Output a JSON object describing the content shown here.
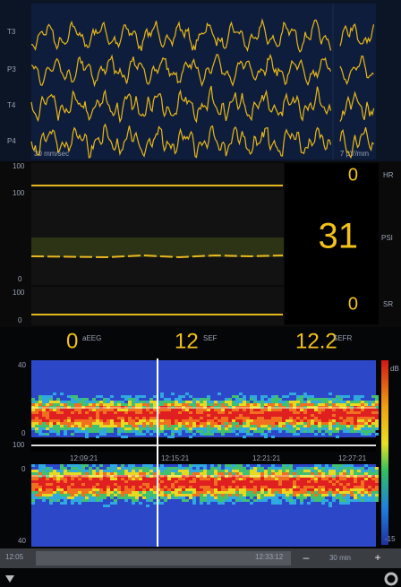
{
  "eeg": {
    "channels": [
      "T3",
      "P3",
      "T4",
      "P4"
    ],
    "speed": "30 mm/sec",
    "gain": "7 µV/mm"
  },
  "trends": {
    "rows": [
      {
        "value": "0",
        "unit": "HR",
        "top": "100",
        "bottom": "0"
      },
      {
        "value": "31",
        "unit": "PSI",
        "top": "100",
        "bottom": "0"
      },
      {
        "value": "0",
        "unit": "SR",
        "top": "100",
        "bottom": "0"
      }
    ]
  },
  "readouts": [
    {
      "value": "0",
      "label": "aEEG"
    },
    {
      "value": "12",
      "label": "SEF"
    },
    {
      "value": "12.2",
      "label": "SEFR"
    }
  ],
  "spectrogram": {
    "top_max": "40",
    "top_min": "0",
    "bottom_max": "0",
    "bottom_min": "40",
    "strip": "100",
    "scale_top": "dB",
    "scale_bottom": "-15",
    "times": [
      "12:09:21",
      "12:15:21",
      "12:21:21",
      "12:27:21"
    ]
  },
  "footer": {
    "date": "12:05",
    "time": "12:33:12",
    "minus": "–",
    "zoom": "30 min",
    "plus": "+"
  }
}
